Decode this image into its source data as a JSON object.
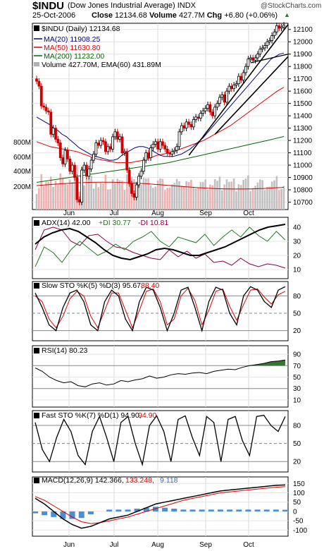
{
  "header": {
    "symbol": "$INDU",
    "name": "(Dow Jones Industrial Average)",
    "exchange": "INDX",
    "date": "25-Oct-2006",
    "close_label": "Close",
    "close": "12134.68",
    "volume_label": "Volume",
    "volume": "427.7M",
    "chg_label": "Chg",
    "chg": "+6.80 (+0.06%)",
    "watermark": "@StockCharts.com"
  },
  "colors": {
    "up": "#000000",
    "down": "#cc0000",
    "ma20": "#000080",
    "ma50": "#dd0000",
    "ma200": "#006600",
    "volume_up": "#c0c0c0",
    "volume_down": "#f0b0b0",
    "ema60": "#cc0000",
    "rsi_fill": "#337733",
    "macd_hist": "#4a90d0"
  },
  "legends": {
    "price": "$INDU (Daily) 12134.68",
    "ma20": "MA(20) 11908.25",
    "ma50": "MA(50) 11630.80",
    "ma200": "MA(200) 11232.00",
    "volume": "Volume 427.70M, EMA(60) 431.89M",
    "adx": "ADX(14) 42.00",
    "plus_di": "+DI 30.77",
    "minus_di": "-DI 10.81",
    "slow_sto": "Slow STO %K(5) %D(3) 95.67,",
    "slow_sto_d": "88.40",
    "rsi": "RSI(14) 80.23",
    "fast_sto": "Fast STO %K(7) %D(1) 94.90,",
    "fast_sto_d": "94.90",
    "macd": "MACD(12,26,9) 142.366,",
    "macd_signal": "133.248,",
    "macd_hist": "9.118"
  },
  "chart_data": [
    {
      "type": "candlestick",
      "title": "$INDU (Dow Jones Industrial Average) INDX — Daily",
      "x_labels": [
        "Jun",
        "Jul",
        "Aug",
        "Sep",
        "Oct"
      ],
      "y_ticks": [
        10700,
        10800,
        10900,
        11000,
        11100,
        11200,
        11300,
        11400,
        11500,
        11600,
        11700,
        11800,
        11900,
        12000,
        12100
      ],
      "ylim": [
        10640,
        12150
      ],
      "volume_ticks": [
        "200M",
        "400M",
        "600M",
        "800M"
      ],
      "close_series": [
        11680,
        11640,
        11480,
        11470,
        11440,
        11430,
        11250,
        11300,
        11210,
        11180,
        11060,
        11010,
        11120,
        11050,
        10950,
        11000,
        10900,
        10720,
        10700,
        10960,
        11000,
        10910,
        10970,
        11040,
        11090,
        11180,
        11160,
        11200,
        11190,
        11110,
        11150,
        11130,
        11230,
        11270,
        11210,
        11230,
        11100,
        11110,
        10960,
        10850,
        10770,
        10740,
        10840,
        10910,
        10950,
        11040,
        11100,
        11060,
        11140,
        11170,
        11190,
        11130,
        11190,
        11160,
        11130,
        11100,
        11090,
        11110,
        11120,
        11150,
        11270,
        11320,
        11300,
        11350,
        11330,
        11310,
        11370,
        11390,
        11380,
        11420,
        11440,
        11460,
        11490,
        11430,
        11400,
        11470,
        11500,
        11550,
        11570,
        11510,
        11600,
        11640,
        11620,
        11650,
        11660,
        11720,
        11690,
        11750,
        11800,
        11860,
        11870,
        11850,
        11870,
        11900,
        11940,
        11950,
        11970,
        12000,
        12010,
        12050,
        12080,
        12130,
        12110,
        12120,
        12135
      ],
      "ma20": [
        11390,
        11370,
        11350,
        11330,
        11300,
        11280,
        11250,
        11230,
        11200,
        11170,
        11140,
        11120,
        11100,
        11080,
        11070,
        11060,
        11050,
        11040,
        11040,
        11050,
        11080,
        11100,
        11120,
        11140,
        11150,
        11150,
        11140,
        11120,
        11100,
        11080,
        11070,
        11070,
        11070,
        11080,
        11090,
        11110,
        11130,
        11160,
        11190,
        11220,
        11260,
        11300,
        11340,
        11380,
        11420,
        11460,
        11500,
        11540,
        11580,
        11620,
        11660,
        11700,
        11740,
        11780,
        11820,
        11860,
        11880,
        11900,
        11908
      ],
      "ma50": [
        11190,
        11170,
        11150,
        11140,
        11130,
        11120,
        11110,
        11090,
        11070,
        11050,
        11040,
        11030,
        11020,
        11020,
        11020,
        11030,
        11040,
        11060,
        11080,
        11090,
        11100,
        11120,
        11140,
        11160,
        11180,
        11200,
        11230,
        11260,
        11290,
        11320,
        11360,
        11400,
        11440,
        11480,
        11520,
        11560,
        11600,
        11631
      ],
      "ma200": [
        10860,
        10880,
        10900,
        10920,
        10940,
        10960,
        10980,
        11000,
        11020,
        11050,
        11080,
        11110,
        11140,
        11170,
        11200,
        11232
      ],
      "adx": [
        28,
        33,
        36,
        38,
        39,
        37,
        33,
        29,
        24,
        20,
        18,
        17,
        19,
        21,
        24,
        25,
        24,
        22,
        20,
        20,
        22,
        24,
        26,
        29,
        32,
        35,
        38,
        40,
        41,
        42
      ],
      "plus_di": [
        12,
        26,
        22,
        15,
        24,
        30,
        25,
        20,
        23,
        28,
        24,
        30,
        33,
        37,
        30,
        26,
        33,
        31,
        29,
        35,
        27,
        33,
        38,
        33,
        40,
        34,
        30,
        37,
        31
      ],
      "minus_di": [
        24,
        38,
        40,
        38,
        30,
        27,
        34,
        35,
        30,
        26,
        25,
        22,
        20,
        18,
        17,
        24,
        19,
        23,
        18,
        21,
        15,
        16,
        13,
        18,
        14,
        12,
        14,
        13,
        11
      ],
      "slow_sto_k": [
        85,
        60,
        30,
        20,
        60,
        85,
        90,
        70,
        30,
        20,
        70,
        90,
        80,
        40,
        20,
        70,
        95,
        90,
        60,
        20,
        50,
        90,
        95,
        60,
        20,
        70,
        95,
        90,
        50,
        30,
        80,
        96,
        90,
        70,
        60,
        90,
        96
      ],
      "slow_sto_d": [
        80,
        70,
        40,
        25,
        45,
        75,
        88,
        80,
        45,
        25,
        55,
        85,
        85,
        55,
        25,
        55,
        88,
        92,
        70,
        30,
        40,
        80,
        93,
        72,
        30,
        55,
        88,
        92,
        62,
        38,
        65,
        90,
        92,
        78,
        66,
        82,
        88
      ],
      "rsi": [
        66,
        60,
        50,
        44,
        40,
        42,
        35,
        33,
        38,
        40,
        36,
        38,
        44,
        42,
        45,
        47,
        52,
        48,
        50,
        54,
        56,
        55,
        57,
        58,
        56,
        60,
        62,
        64,
        63,
        67,
        70,
        72,
        74,
        77,
        78,
        80
      ],
      "fast_sto_k": [
        85,
        40,
        20,
        60,
        90,
        70,
        30,
        15,
        70,
        95,
        60,
        20,
        85,
        95,
        50,
        15,
        80,
        96,
        70,
        20,
        90,
        96,
        60,
        30,
        95,
        85,
        20,
        90,
        95,
        55,
        30,
        95,
        97,
        80,
        70,
        95
      ],
      "macd": [
        70,
        40,
        0,
        -40,
        -70,
        -90,
        -80,
        -60,
        -40,
        -30,
        -20,
        0,
        20,
        40,
        50,
        60,
        70,
        80,
        90,
        100,
        110,
        115,
        120,
        125,
        130,
        135,
        140,
        142
      ],
      "macd_signal": [
        80,
        60,
        30,
        0,
        -30,
        -55,
        -65,
        -60,
        -50,
        -40,
        -30,
        -15,
        0,
        15,
        30,
        45,
        60,
        70,
        80,
        90,
        100,
        105,
        110,
        115,
        120,
        125,
        130,
        133
      ],
      "macd_histogram": [
        -10,
        -20,
        -30,
        -40,
        -40,
        -35,
        -15,
        0,
        10,
        10,
        10,
        15,
        20,
        25,
        20,
        15,
        10,
        10,
        10,
        10,
        10,
        10,
        10,
        10,
        10,
        10,
        10,
        9
      ]
    }
  ],
  "panels": {
    "adx_ticks": [
      "40",
      "30",
      "20",
      "10"
    ],
    "sto_ticks": [
      "80",
      "50",
      "20"
    ],
    "rsi_ticks": [
      "90",
      "70",
      "50",
      "30",
      "10"
    ],
    "fast_ticks": [
      "80",
      "50",
      "20"
    ],
    "macd_ticks": [
      "150",
      "100",
      "50",
      "0",
      "-50",
      "-100"
    ]
  }
}
